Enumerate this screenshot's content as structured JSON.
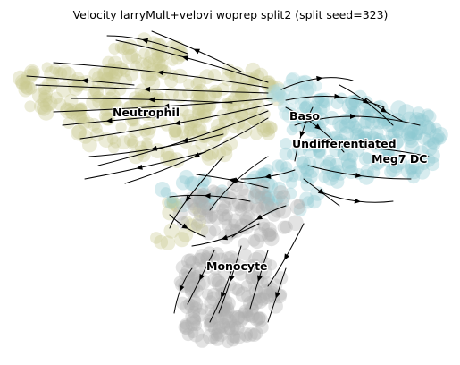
{
  "chart_data": {
    "type": "scatter",
    "title": "Velocity larryMult+velovi woprep split2 (split seed=323)",
    "xlabel": "",
    "ylabel": "",
    "axes_visible": false,
    "grid": false,
    "legend": "on data",
    "overlay": "velocity streamlines",
    "clusters": [
      {
        "name": "Neutrophil",
        "color": "#c8c890"
      },
      {
        "name": "Baso",
        "color": "#a8d8dc"
      },
      {
        "name": "Undifferentiated",
        "color": "#8cc8d0"
      },
      {
        "name": "Meg7 DC",
        "color": "#8cc8d0"
      },
      {
        "name": "Monocyte",
        "color": "#b0b0b0"
      }
    ]
  }
}
